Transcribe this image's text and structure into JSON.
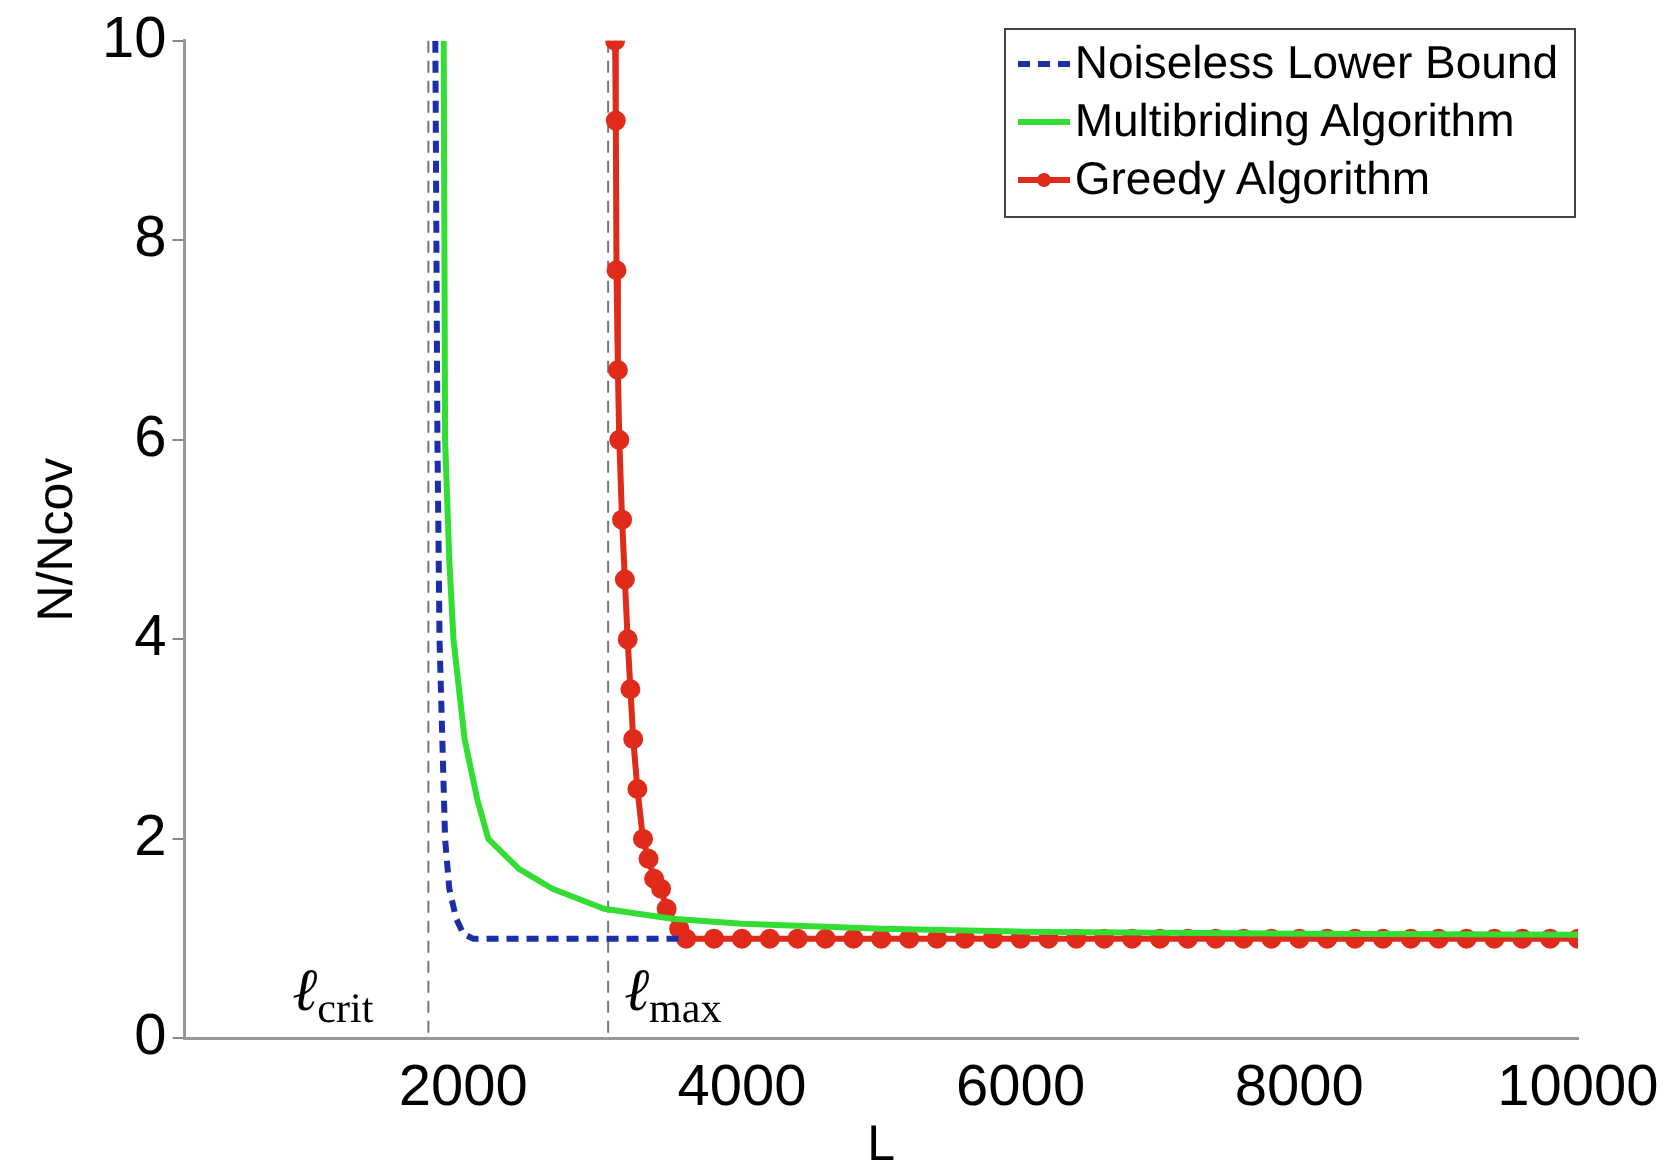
{
  "chart_data": {
    "type": "line",
    "xlabel": "L",
    "ylabel": "N/Ncov",
    "xlim": [
      0,
      10000
    ],
    "xticks": [
      2000,
      4000,
      6000,
      8000,
      10000
    ],
    "ylim": [
      0,
      10
    ],
    "yticks": [
      0,
      2,
      4,
      6,
      8,
      10
    ],
    "grid": false,
    "legend": "top right",
    "series": [
      {
        "name": "Noiseless Lower Bound",
        "color": "#1a2fa8",
        "marker": "none",
        "line_style": "dashed",
        "x": [
          1800,
          1815,
          1830,
          1850,
          1870,
          1900,
          1950,
          2000,
          2070,
          2500,
          3000,
          3550
        ],
        "values": [
          10,
          6,
          4,
          3,
          2,
          1.5,
          1.2,
          1.05,
          1,
          1,
          1,
          1
        ]
      },
      {
        "name": "Multibriding Algorithm",
        "color": "#33dd33",
        "marker": "none",
        "line_style": "solid",
        "x": [
          1860,
          1870,
          1900,
          1930,
          2010,
          2100,
          2180,
          2400,
          2640,
          3010,
          3500,
          4000,
          5000,
          6000,
          8000,
          10000
        ],
        "values": [
          10,
          6,
          4.8,
          4,
          3,
          2.4,
          2,
          1.7,
          1.5,
          1.3,
          1.2,
          1.15,
          1.1,
          1.07,
          1.05,
          1.04
        ]
      },
      {
        "name": "Greedy Algorithm",
        "color": "#e02a1a",
        "marker": "circle",
        "line_style": "solid",
        "x": [
          3090,
          3095,
          3100,
          3110,
          3120,
          3140,
          3160,
          3180,
          3200,
          3220,
          3250,
          3290,
          3330,
          3370,
          3420,
          3460,
          3550,
          3600,
          3800,
          4000,
          4200,
          4400,
          4600,
          4800,
          5000,
          5200,
          5400,
          5600,
          5800,
          6000,
          6200,
          6400,
          6600,
          6800,
          7000,
          7200,
          7400,
          7600,
          7800,
          8000,
          8200,
          8400,
          8600,
          8800,
          9000,
          9200,
          9400,
          9600,
          9800,
          10000
        ],
        "values": [
          10,
          9.2,
          7.7,
          6.7,
          6,
          5.2,
          4.6,
          4,
          3.5,
          3,
          2.5,
          2,
          1.8,
          1.6,
          1.5,
          1.3,
          1.1,
          1,
          1,
          1,
          1,
          1,
          1,
          1,
          1,
          1,
          1,
          1,
          1,
          1,
          1,
          1,
          1,
          1,
          1,
          1,
          1,
          1,
          1,
          1,
          1,
          1,
          1,
          1,
          1,
          1,
          1,
          1,
          1,
          1
        ]
      }
    ],
    "ref_lines": [
      {
        "axis": "x",
        "value": 1750,
        "label": "ℓ$_{crit}$",
        "color": "#777777",
        "line_style": "dashed"
      },
      {
        "axis": "x",
        "value": 3040,
        "label": "ℓ$_{max}$",
        "color": "#777777",
        "line_style": "dashed"
      }
    ]
  }
}
